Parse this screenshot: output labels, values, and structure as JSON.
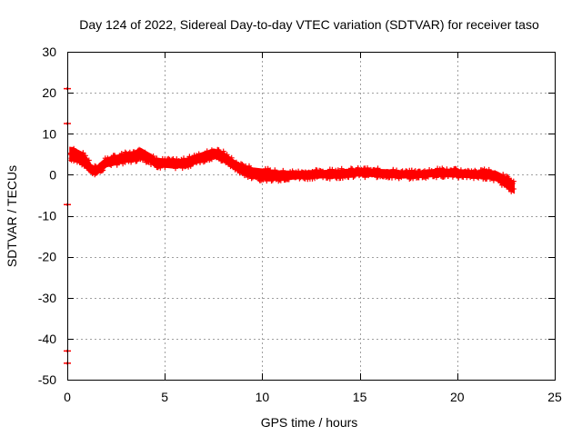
{
  "chart_data": {
    "type": "scatter",
    "title": "Day 124 of 2022, Sidereal Day-to-day VTEC variation (SDTVAR) for receiver taso",
    "xlabel": "GPS time / hours",
    "ylabel": "SDTVAR / TECUs",
    "xlim": [
      0,
      25
    ],
    "ylim": [
      -50,
      30
    ],
    "xticks": [
      0,
      5,
      10,
      15,
      20,
      25
    ],
    "yticks": [
      -50,
      -40,
      -30,
      -20,
      -10,
      0,
      10,
      20,
      30
    ],
    "grid": true,
    "series": [
      {
        "name": "SDTVAR",
        "color": "#ff0000",
        "marker": "plus",
        "band": {
          "x": [
            0.15,
            0.3,
            0.5,
            0.75,
            1.0,
            1.25,
            1.5,
            1.75,
            2.0,
            2.5,
            3.0,
            3.5,
            3.75,
            4.0,
            4.25,
            4.5,
            5.0,
            5.5,
            6.0,
            6.5,
            7.0,
            7.5,
            8.0,
            8.5,
            9.0,
            9.5,
            10.0,
            10.5,
            11.0,
            11.5,
            12.0,
            12.5,
            13.0,
            13.5,
            14.0,
            14.5,
            15.0,
            15.5,
            16.0,
            16.5,
            17.0,
            17.5,
            18.0,
            18.5,
            19.0,
            19.5,
            20.0,
            20.5,
            21.0,
            21.5,
            22.0,
            22.25,
            22.5,
            22.75,
            22.9
          ],
          "ymid": [
            5.0,
            5.0,
            4.6,
            4.0,
            2.8,
            1.2,
            1.0,
            2.0,
            3.0,
            3.6,
            4.2,
            4.6,
            5.2,
            4.6,
            4.0,
            3.0,
            2.8,
            2.6,
            2.8,
            3.6,
            4.4,
            5.2,
            4.4,
            2.6,
            1.2,
            0.4,
            0.1,
            -0.1,
            -0.2,
            -0.1,
            0.0,
            0.1,
            0.1,
            0.2,
            0.3,
            0.5,
            0.6,
            0.5,
            0.4,
            0.3,
            0.1,
            0.0,
            0.1,
            0.3,
            0.5,
            0.4,
            0.4,
            0.2,
            0.0,
            0.2,
            -0.3,
            -1.0,
            -1.8,
            -2.6,
            -3.0
          ],
          "half_width": [
            1.6,
            1.5,
            1.4,
            1.4,
            1.3,
            0.9,
            0.9,
            1.0,
            1.0,
            1.0,
            1.0,
            1.1,
            1.2,
            1.1,
            1.0,
            1.0,
            0.9,
            0.9,
            0.9,
            1.0,
            1.0,
            1.0,
            1.1,
            1.0,
            1.1,
            1.2,
            1.2,
            1.1,
            1.0,
            0.9,
            0.8,
            0.8,
            0.8,
            0.8,
            0.8,
            0.8,
            0.8,
            0.8,
            0.8,
            0.8,
            0.8,
            0.7,
            0.7,
            0.7,
            0.8,
            0.8,
            0.8,
            0.8,
            0.8,
            0.9,
            1.0,
            1.1,
            1.2,
            1.3,
            1.3
          ]
        },
        "outliers": [
          {
            "x": 0.0,
            "y": 21
          },
          {
            "x": 0.0,
            "y": 12.5
          },
          {
            "x": 0.0,
            "y": -7.3
          },
          {
            "x": 0.0,
            "y": -43
          },
          {
            "x": 0.0,
            "y": -46
          }
        ]
      }
    ]
  }
}
